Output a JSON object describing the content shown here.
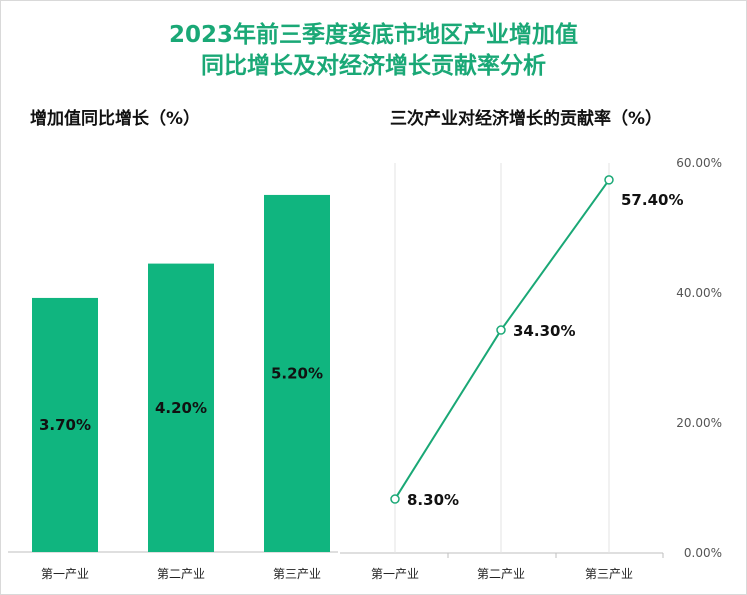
{
  "title_line1": "2023年前三季度娄底市地区产业增加值",
  "title_line2": "同比增长及对经济增长贡献率分析",
  "colors": {
    "accent": "#1aa876",
    "bar": "#10b57f",
    "line": "#1aa876"
  },
  "chart_data": [
    {
      "type": "bar",
      "title": "增加值同比增长（%）",
      "categories": [
        "第一产业",
        "第二产业",
        "第三产业"
      ],
      "values": [
        3.7,
        4.2,
        5.2
      ],
      "value_labels": [
        "3.70%",
        "4.20%",
        "5.20%"
      ],
      "ylim": [
        0,
        6.0
      ],
      "grid": false
    },
    {
      "type": "line",
      "title": "三次产业对经济增长的贡献率（%）",
      "categories": [
        "第一产业",
        "第二产业",
        "第三产业"
      ],
      "values": [
        8.3,
        34.3,
        57.4
      ],
      "value_labels": [
        "8.30%",
        "34.30%",
        "57.40%"
      ],
      "ylim": [
        0,
        60
      ],
      "y_ticks": [
        0,
        20,
        40,
        60
      ],
      "y_tick_labels": [
        "0.00%",
        "20.00%",
        "40.00%",
        "60.00%"
      ],
      "y_axis_position": "right",
      "grid": "vertical category lines"
    }
  ]
}
